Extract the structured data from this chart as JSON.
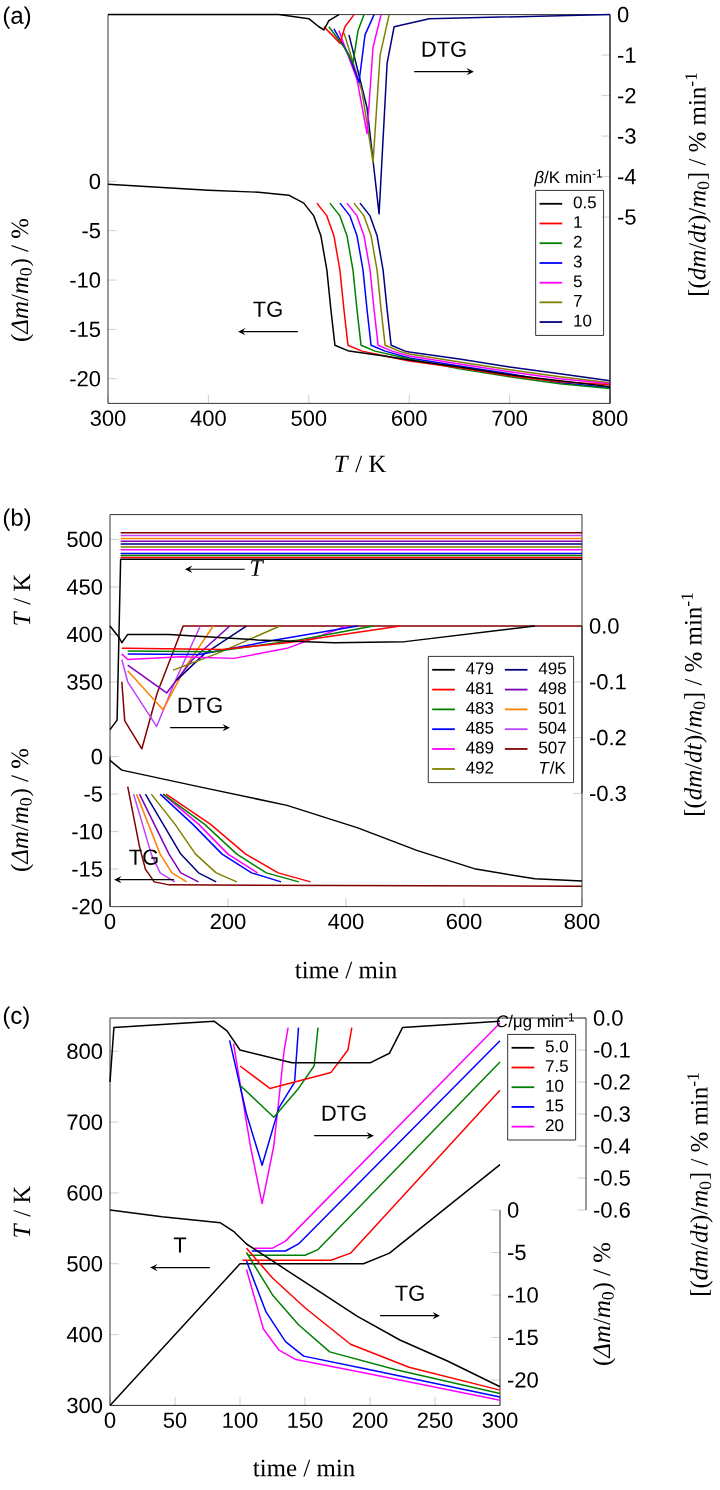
{
  "chart_data": [
    {
      "type": "line",
      "title": "(a)",
      "xlabel": "*T* / K",
      "ylabel": "(*Δm*/*m*$_{0}$) / %",
      "y2label": "[(*dm*/*dt*)/*m*$_{0}$] / % min$^{-1}$",
      "legend_title": "*β*/K min$^{-1}$",
      "legend": "right",
      "annotations": [
        "DTG",
        "TG"
      ],
      "xlim": [
        300,
        800
      ],
      "xticks": [
        300,
        400,
        500,
        600,
        700,
        800
      ],
      "ylim": [
        -22.5,
        16.9
      ],
      "yticks": [
        -20,
        -15,
        -10,
        -5,
        0
      ],
      "y2lim": [
        -9.6,
        0
      ],
      "y2ticks": [
        -5,
        -4,
        -3,
        -2,
        -1,
        0
      ],
      "series": [
        {
          "name": "0.5",
          "color": "#000000",
          "axis": "y",
          "x": [
            300,
            350,
            400,
            450,
            480,
            495,
            505,
            512,
            518,
            522,
            526,
            540,
            575,
            600,
            650,
            700,
            750,
            800
          ],
          "values": [
            -0.3,
            -0.6,
            -0.9,
            -1.1,
            -1.4,
            -2.2,
            -3.5,
            -5.5,
            -9,
            -13,
            -16.6,
            -17.2,
            -17.7,
            -18.1,
            -18.8,
            -19.6,
            -20.2,
            -20.8
          ]
        },
        {
          "name": "1",
          "color": "#ff0000",
          "axis": "y",
          "x": [
            508,
            518,
            525,
            531,
            535,
            539,
            553,
            600,
            650,
            700,
            750,
            800
          ],
          "values": [
            -2.2,
            -3.5,
            -5.5,
            -9,
            -13,
            -16.6,
            -17.2,
            -18.2,
            -18.9,
            -19.7,
            -20.3,
            -20.6
          ]
        },
        {
          "name": "2",
          "color": "#008000",
          "axis": "y",
          "x": [
            521,
            531,
            538,
            544,
            548,
            552,
            566,
            600,
            650,
            700,
            750,
            800
          ],
          "values": [
            -2.2,
            -3.5,
            -5.5,
            -9,
            -13,
            -16.6,
            -17.2,
            -18.0,
            -19.0,
            -19.8,
            -20.5,
            -21.0
          ]
        },
        {
          "name": "3",
          "color": "#0000ff",
          "axis": "y",
          "x": [
            531,
            541,
            548,
            554,
            558,
            562,
            576,
            600,
            650,
            700,
            750,
            800
          ],
          "values": [
            -2.2,
            -3.5,
            -5.5,
            -9,
            -13,
            -16.6,
            -17.2,
            -17.9,
            -18.7,
            -19.5,
            -20.4,
            -20.9
          ]
        },
        {
          "name": "5",
          "color": "#ff00ff",
          "axis": "y",
          "x": [
            538,
            548,
            555,
            561,
            565,
            569,
            583,
            600,
            650,
            700,
            750,
            800
          ],
          "values": [
            -2.2,
            -3.5,
            -5.5,
            -9,
            -13,
            -16.6,
            -17.2,
            -17.7,
            -18.5,
            -19.3,
            -20.0,
            -20.5
          ]
        },
        {
          "name": "7",
          "color": "#808000",
          "axis": "y",
          "x": [
            545,
            555,
            562,
            568,
            572,
            576,
            590,
            600,
            650,
            700,
            750,
            800
          ],
          "values": [
            -2.2,
            -3.5,
            -5.5,
            -9,
            -13,
            -16.6,
            -17.2,
            -17.5,
            -18.3,
            -19.1,
            -19.8,
            -20.4
          ]
        },
        {
          "name": "10",
          "color": "#000080",
          "axis": "y",
          "x": [
            551,
            561,
            568,
            574,
            578,
            582,
            596,
            600,
            650,
            700,
            750,
            800
          ],
          "values": [
            -2.2,
            -3.5,
            -5.5,
            -9,
            -13,
            -16.6,
            -17.2,
            -17.3,
            -18.0,
            -18.8,
            -19.5,
            -20.2
          ]
        },
        {
          "color": "#000000",
          "axis": "y2",
          "x": [
            300,
            470,
            500,
            510,
            515,
            520,
            530
          ],
          "values": [
            0,
            0,
            -0.1,
            -0.3,
            -0.38,
            -0.15,
            0
          ]
        },
        {
          "color": "#ff0000",
          "axis": "y2",
          "x": [
            515,
            525,
            531,
            536,
            545
          ],
          "values": [
            -0.3,
            -0.55,
            -0.71,
            -0.3,
            0
          ]
        },
        {
          "color": "#008000",
          "axis": "y2",
          "x": [
            520,
            535,
            544,
            549,
            555
          ],
          "values": [
            -0.3,
            -0.8,
            -1.2,
            -0.4,
            0
          ]
        },
        {
          "color": "#0000ff",
          "axis": "y2",
          "x": [
            525,
            540,
            550,
            556,
            565
          ],
          "values": [
            -0.35,
            -1.0,
            -1.67,
            -0.5,
            0
          ]
        },
        {
          "color": "#ff00ff",
          "axis": "y2",
          "x": [
            530,
            548,
            558,
            564,
            572
          ],
          "values": [
            -0.4,
            -1.6,
            -2.94,
            -0.8,
            0
          ]
        },
        {
          "color": "#808000",
          "axis": "y2",
          "x": [
            535,
            553,
            564,
            571,
            580
          ],
          "values": [
            -0.45,
            -1.9,
            -3.65,
            -1.0,
            0
          ]
        },
        {
          "color": "#000080",
          "axis": "y2",
          "x": [
            540,
            558,
            570,
            578,
            585,
            620,
            800
          ],
          "values": [
            -0.5,
            -2.3,
            -4.92,
            -1.2,
            -0.3,
            -0.1,
            0
          ]
        }
      ]
    },
    {
      "type": "line",
      "title": "(b)",
      "xlabel": "time / min",
      "ylabel": "*T* / K",
      "y3label": "(*Δm*/*m*$_{0}$) / %",
      "y2label": "[(*dm*/*dt*)/*m*$_{0}$] / % min$^{-1}$",
      "legend_title": "*T*/K",
      "legend": "right",
      "annotations": [
        "T",
        "DTG",
        "TG"
      ],
      "xlim": [
        0,
        800
      ],
      "xticks": [
        0,
        200,
        400,
        600,
        800
      ],
      "ylim": [
        114,
        526
      ],
      "yticks": [
        350,
        400,
        450,
        500
      ],
      "y3lim": [
        -20,
        0
      ],
      "y3ticks": [
        -20,
        -15,
        -10,
        -5,
        0
      ],
      "y2lim": [
        -0.3,
        0
      ],
      "y2ticks": [
        {
          "value": 0,
          "label": "0.0"
        },
        -0.1,
        -0.2,
        -0.3
      ],
      "series": [
        {
          "name": "479",
          "color": "#000000",
          "axis": "y",
          "x": [
            0,
            12,
            18,
            800
          ],
          "values": [
            300,
            310,
            479,
            479
          ]
        },
        {
          "name": "481",
          "color": "#ff0000",
          "axis": "y",
          "x": [
            18,
            800
          ],
          "values": [
            481,
            481
          ]
        },
        {
          "name": "483",
          "color": "#008000",
          "axis": "y",
          "x": [
            18,
            800
          ],
          "values": [
            483,
            483
          ]
        },
        {
          "name": "485",
          "color": "#0000ff",
          "axis": "y",
          "x": [
            18,
            800
          ],
          "values": [
            485,
            485
          ]
        },
        {
          "name": "489",
          "color": "#ff00ff",
          "axis": "y",
          "x": [
            18,
            800
          ],
          "values": [
            489,
            489
          ]
        },
        {
          "name": "492",
          "color": "#808000",
          "axis": "y",
          "x": [
            18,
            800
          ],
          "values": [
            492,
            492
          ]
        },
        {
          "name": "495",
          "color": "#000080",
          "axis": "y",
          "x": [
            18,
            800
          ],
          "values": [
            495,
            495
          ]
        },
        {
          "name": "498",
          "color": "#8000c0",
          "axis": "y",
          "x": [
            18,
            800
          ],
          "values": [
            498,
            498
          ]
        },
        {
          "name": "501",
          "color": "#ff8000",
          "axis": "y",
          "x": [
            18,
            800
          ],
          "values": [
            501,
            501
          ]
        },
        {
          "name": "504",
          "color": "#c040ff",
          "axis": "y",
          "x": [
            18,
            800
          ],
          "values": [
            504,
            504
          ]
        },
        {
          "name": "507",
          "color": "#800000",
          "axis": "y",
          "x": [
            18,
            800
          ],
          "values": [
            507,
            507
          ]
        },
        {
          "color": "#000000",
          "axis": "y2",
          "x": [
            0,
            15,
            20,
            30,
            100,
            250,
            380,
            500,
            720
          ],
          "values": [
            0,
            -0.02,
            -0.03,
            -0.015,
            -0.015,
            -0.025,
            -0.03,
            -0.028,
            0
          ]
        },
        {
          "color": "#ff0000",
          "axis": "y2",
          "x": [
            20,
            30,
            190,
            300,
            492
          ],
          "values": [
            -0.04,
            -0.04,
            -0.042,
            -0.03,
            0
          ]
        },
        {
          "color": "#008000",
          "axis": "y2",
          "x": [
            30,
            175,
            320,
            446
          ],
          "values": [
            -0.045,
            -0.046,
            -0.025,
            0
          ]
        },
        {
          "color": "#0000ff",
          "axis": "y2",
          "x": [
            30,
            152,
            280,
            420
          ],
          "values": [
            -0.05,
            -0.051,
            -0.025,
            0
          ]
        },
        {
          "color": "#ff00ff",
          "axis": "y2",
          "x": [
            20,
            30,
            120,
            210,
            300,
            401
          ],
          "values": [
            -0.05,
            -0.06,
            -0.055,
            -0.058,
            -0.04,
            0
          ]
        },
        {
          "color": "#808000",
          "axis": "y2",
          "x": [
            107,
            180,
            288
          ],
          "values": [
            -0.079,
            -0.05,
            0
          ]
        },
        {
          "color": "#000080",
          "axis": "y2",
          "x": [
            113,
            160,
            231
          ],
          "values": [
            -0.097,
            -0.05,
            0
          ]
        },
        {
          "color": "#8000c0",
          "axis": "y2",
          "x": [
            30,
            96,
            140,
            203
          ],
          "values": [
            -0.07,
            -0.12,
            -0.06,
            0
          ]
        },
        {
          "color": "#ff8000",
          "axis": "y2",
          "x": [
            30,
            90,
            130,
            175
          ],
          "values": [
            -0.08,
            -0.15,
            -0.07,
            0
          ]
        },
        {
          "color": "#c040ff",
          "axis": "y2",
          "x": [
            20,
            30,
            79,
            110,
            153
          ],
          "values": [
            -0.06,
            -0.1,
            -0.18,
            -0.1,
            0
          ]
        },
        {
          "color": "#800000",
          "axis": "y2",
          "x": [
            20,
            25,
            54,
            80,
            124,
            800
          ],
          "values": [
            -0.1,
            -0.17,
            -0.22,
            -0.12,
            0,
            0
          ]
        },
        {
          "color": "#000000",
          "axis": "y3",
          "x": [
            0,
            20,
            150,
            300,
            420,
            520,
            620,
            720,
            800
          ],
          "values": [
            -0.5,
            -1.8,
            -4,
            -6.5,
            -9.5,
            -12.5,
            -15,
            -16.3,
            -16.6
          ]
        },
        {
          "color": "#ff0000",
          "axis": "y3",
          "x": [
            95,
            170,
            230,
            285,
            340
          ],
          "values": [
            -5,
            -9,
            -13,
            -15.5,
            -16.7
          ]
        },
        {
          "color": "#008000",
          "axis": "y3",
          "x": [
            90,
            160,
            215,
            265,
            320
          ],
          "values": [
            -5,
            -9,
            -13,
            -15.5,
            -16.7
          ]
        },
        {
          "color": "#0000ff",
          "axis": "y3",
          "x": [
            85,
            140,
            190,
            240,
            290
          ],
          "values": [
            -5,
            -9,
            -13,
            -15.5,
            -16.7
          ]
        },
        {
          "color": "#ff00ff",
          "axis": "y3",
          "x": [
            90,
            150,
            200,
            250
          ],
          "values": [
            -5,
            -9,
            -13,
            -15.5
          ]
        },
        {
          "color": "#808000",
          "axis": "y3",
          "x": [
            70,
            110,
            145,
            180,
            215
          ],
          "values": [
            -5,
            -9,
            -13,
            -15.5,
            -16.7
          ]
        },
        {
          "color": "#000080",
          "axis": "y3",
          "x": [
            60,
            90,
            120,
            150,
            180
          ],
          "values": [
            -5,
            -9,
            -13,
            -15.5,
            -16.7
          ]
        },
        {
          "color": "#8000c0",
          "axis": "y3",
          "x": [
            50,
            75,
            100,
            120,
            150
          ],
          "values": [
            -5,
            -9,
            -13,
            -15.5,
            -16.7
          ]
        },
        {
          "color": "#ff8000",
          "axis": "y3",
          "x": [
            45,
            65,
            85,
            105,
            130
          ],
          "values": [
            -5,
            -9,
            -13,
            -15.5,
            -16.7
          ]
        },
        {
          "color": "#c040ff",
          "axis": "y3",
          "x": [
            40,
            55,
            70,
            85,
            110
          ],
          "values": [
            -5,
            -9,
            -13,
            -15.5,
            -16.7
          ]
        },
        {
          "color": "#800000",
          "axis": "y3",
          "x": [
            30,
            40,
            50,
            60,
            75,
            100,
            800
          ],
          "values": [
            -4,
            -8,
            -12,
            -15,
            -16.7,
            -17.1,
            -17.3
          ]
        }
      ]
    },
    {
      "type": "line",
      "title": "(c)",
      "xlabel": "time / min",
      "ylabel": "*T* / K",
      "y2label": "[(*dm*/*dt*)/*m*$_{0}$] / % min$^{-1}$",
      "y3label": "(*Δm*/*m*$_{0}$) / %",
      "legend_title": "*C*/μg min$^{-1}$",
      "legend": "top right",
      "annotations": [
        "T",
        "DTG",
        "TG"
      ],
      "xlim": [
        0,
        300
      ],
      "xticks": [
        0,
        50,
        100,
        150,
        200,
        250,
        300
      ],
      "ylim": [
        300,
        847
      ],
      "yticks": [
        300,
        400,
        500,
        600,
        700,
        800
      ],
      "y2lim": [
        -0.6,
        0
      ],
      "y2ticks": [
        {
          "value": 0,
          "label": "0.0"
        },
        -0.1,
        -0.2,
        -0.3,
        -0.4,
        -0.5,
        -0.6
      ],
      "y3lim": [
        -23,
        0
      ],
      "y3ticks": [
        -20,
        -15,
        -10,
        -5,
        0
      ],
      "series": [
        {
          "name": "5.0",
          "color": "#000000",
          "axis": "y",
          "x": [
            0,
            100,
            195,
            215,
            300
          ],
          "values": [
            300,
            500,
            500,
            515,
            640
          ]
        },
        {
          "name": "7.5",
          "color": "#ff0000",
          "axis": "y",
          "x": [
            102,
            170,
            185,
            300
          ],
          "values": [
            505,
            505,
            515,
            745
          ]
        },
        {
          "name": "10",
          "color": "#008000",
          "axis": "y",
          "x": [
            106,
            150,
            160,
            300
          ],
          "values": [
            512,
            512,
            520,
            785
          ]
        },
        {
          "name": "15",
          "color": "#0000ff",
          "axis": "y",
          "x": [
            109,
            135,
            145,
            300
          ],
          "values": [
            518,
            518,
            528,
            815
          ]
        },
        {
          "name": "20",
          "color": "#ff00ff",
          "axis": "y",
          "x": [
            111,
            125,
            135,
            300
          ],
          "values": [
            522,
            522,
            532,
            840
          ]
        },
        {
          "color": "#000000",
          "axis": "y2",
          "x": [
            0,
            3,
            80,
            90,
            100,
            140,
            200,
            215,
            225,
            300
          ],
          "values": [
            -0.2,
            -0.03,
            -0.01,
            -0.04,
            -0.1,
            -0.14,
            -0.14,
            -0.11,
            -0.03,
            -0.01
          ]
        },
        {
          "color": "#ff0000",
          "axis": "y2",
          "x": [
            100,
            123,
            170,
            183,
            186
          ],
          "values": [
            -0.15,
            -0.22,
            -0.17,
            -0.1,
            -0.03
          ]
        },
        {
          "color": "#008000",
          "axis": "y2",
          "x": [
            100,
            126,
            145,
            157,
            160
          ],
          "values": [
            -0.21,
            -0.31,
            -0.22,
            -0.15,
            -0.03
          ]
        },
        {
          "color": "#0000ff",
          "axis": "y2",
          "x": [
            92,
            105,
            117,
            130,
            142,
            145
          ],
          "values": [
            -0.07,
            -0.3,
            -0.46,
            -0.28,
            -0.2,
            -0.03
          ]
        },
        {
          "color": "#ff00ff",
          "axis": "y2",
          "x": [
            95,
            108,
            117,
            126,
            134,
            137
          ],
          "values": [
            -0.08,
            -0.4,
            -0.58,
            -0.4,
            -0.1,
            -0.03
          ]
        },
        {
          "color": "#000000",
          "axis": "y3",
          "x": [
            0,
            40,
            85,
            95,
            105,
            130,
            160,
            190,
            223,
            260,
            300
          ],
          "values": [
            0,
            -0.8,
            -1.5,
            -2.5,
            -4,
            -6.5,
            -9.5,
            -12.5,
            -15.3,
            -17.8,
            -20.8
          ]
        },
        {
          "color": "#ff0000",
          "axis": "y3",
          "x": [
            105,
            125,
            150,
            185,
            230,
            300
          ],
          "values": [
            -4.5,
            -8,
            -11.5,
            -15.8,
            -18.5,
            -21.2
          ]
        },
        {
          "color": "#008000",
          "axis": "y3",
          "x": [
            105,
            125,
            145,
            169,
            220,
            300
          ],
          "values": [
            -5,
            -10,
            -13.5,
            -16.7,
            -18.8,
            -21.6
          ]
        },
        {
          "color": "#0000ff",
          "axis": "y3",
          "x": [
            105,
            120,
            135,
            149,
            200,
            300
          ],
          "values": [
            -6,
            -12,
            -15.5,
            -17.2,
            -18.8,
            -22.0
          ]
        },
        {
          "color": "#ff00ff",
          "axis": "y3",
          "x": [
            105,
            118,
            130,
            143,
            200,
            300
          ],
          "values": [
            -7,
            -14,
            -16.5,
            -17.6,
            -19.3,
            -22.4
          ]
        }
      ]
    }
  ]
}
